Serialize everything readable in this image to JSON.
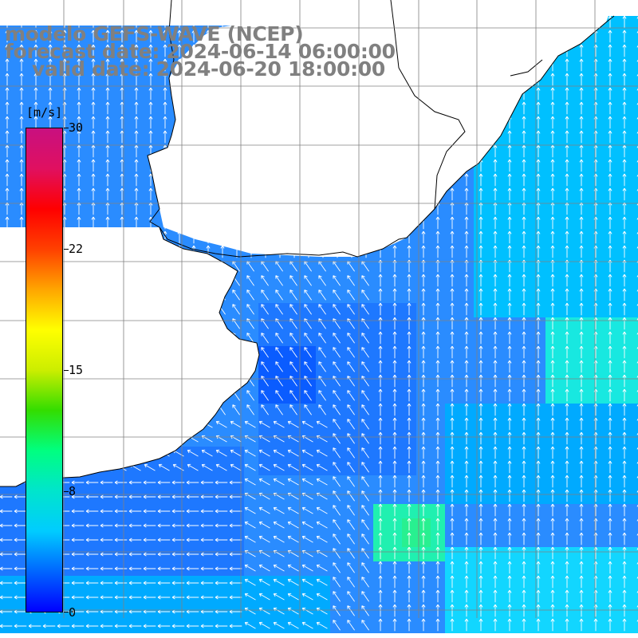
{
  "title": {
    "model": "modelo GEFS-WAVE (NCEP)",
    "forecast": "forecast date: 2024-06-14 06:00:00",
    "valid": "valid date: 2024-06-20 18:00:00"
  },
  "colorbar": {
    "unit": "[m/s]",
    "ticks": [
      "30",
      "22",
      "15",
      "8",
      "0"
    ],
    "colors": [
      "#0000ff",
      "#0066ff",
      "#00ccff",
      "#00e5cc",
      "#00ff80",
      "#33dd00",
      "#ccee00",
      "#ffff00",
      "#ffa500",
      "#ff4000",
      "#ff0000",
      "#e01060",
      "#c81080"
    ]
  },
  "map": {
    "land_color": "#ffffff",
    "sea_palette": [
      "#0a5cff",
      "#1e78ff",
      "#2a8cff",
      "#00aaff",
      "#00c0ff",
      "#12d6ff",
      "#18e8e0",
      "#20f0b0",
      "#28f090"
    ],
    "arrow_color": "#ffffff",
    "grid_color": "#808080"
  }
}
